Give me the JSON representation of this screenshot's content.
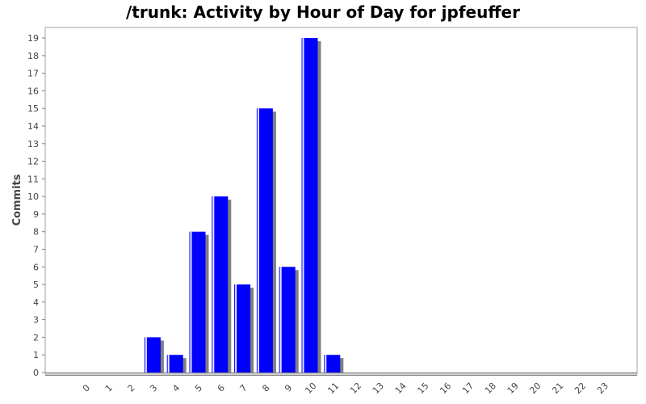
{
  "chart_data": {
    "type": "bar",
    "title": "/trunk: Activity by Hour of Day for jpfeuffer",
    "xlabel": "",
    "ylabel": "Commits",
    "categories": [
      "0",
      "1",
      "2",
      "3",
      "4",
      "5",
      "6",
      "7",
      "8",
      "9",
      "10",
      "11",
      "12",
      "13",
      "14",
      "15",
      "16",
      "17",
      "18",
      "19",
      "20",
      "21",
      "22",
      "23"
    ],
    "values": [
      0,
      0,
      0,
      2,
      1,
      8,
      10,
      5,
      15,
      6,
      19,
      1,
      0,
      0,
      0,
      0,
      0,
      0,
      0,
      0,
      0,
      0,
      0,
      0
    ],
    "ylim": [
      0,
      19.6
    ],
    "yticks": [
      0,
      1,
      2,
      3,
      4,
      5,
      6,
      7,
      8,
      9,
      10,
      11,
      12,
      13,
      14,
      15,
      16,
      17,
      18,
      19
    ],
    "grid": false,
    "legend": "none",
    "bar_color": "#0000ff",
    "shadow_color": "#808080"
  }
}
